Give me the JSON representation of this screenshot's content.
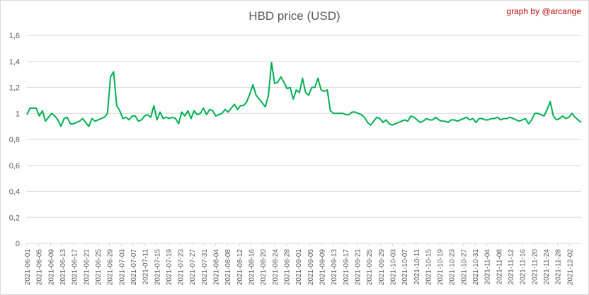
{
  "chart_data": {
    "type": "line",
    "title": "HBD price (USD)",
    "credit": "graph by @arcange",
    "xlabel": "",
    "ylabel": "",
    "ylim": [
      0,
      1.6
    ],
    "yticks": [
      "0",
      "0,2",
      "0,4",
      "0,6",
      "0,8",
      "1",
      "1,2",
      "1,4",
      "1,6"
    ],
    "grid": true,
    "legend": "none",
    "x_start": "2021-06-01",
    "x_end": "2021-12-06",
    "x_tick_labels": [
      "2021-06-01",
      "2021-06-05",
      "2021-06-09",
      "2021-06-13",
      "2021-06-17",
      "2021-06-21",
      "2021-06-25",
      "2021-06-29",
      "2021-07-03",
      "2021-07-07",
      "2021-07-11",
      "2021-07-15",
      "2021-07-19",
      "2021-07-23",
      "2021-07-27",
      "2021-07-31",
      "2021-08-04",
      "2021-08-08",
      "2021-08-12",
      "2021-08-16",
      "2021-08-20",
      "2021-08-24",
      "2021-08-28",
      "2021-09-01",
      "2021-09-05",
      "2021-09-09",
      "2021-09-13",
      "2021-09-17",
      "2021-09-21",
      "2021-09-25",
      "2021-09-29",
      "2021-10-03",
      "2021-10-07",
      "2021-10-11",
      "2021-10-15",
      "2021-10-19",
      "2021-10-23",
      "2021-10-27",
      "2021-10-31",
      "2021-11-04",
      "2021-11-08",
      "2021-11-12",
      "2021-11-16",
      "2021-11-20",
      "2021-11-24",
      "2021-11-28",
      "2021-12-02"
    ],
    "series": [
      {
        "color": "#00b050",
        "values": [
          0.99,
          1.04,
          1.04,
          1.04,
          0.98,
          1.02,
          0.94,
          0.97,
          1.0,
          0.98,
          0.95,
          0.9,
          0.96,
          0.97,
          0.92,
          0.92,
          0.93,
          0.94,
          0.96,
          0.93,
          0.9,
          0.96,
          0.94,
          0.95,
          0.96,
          0.97,
          1.0,
          1.28,
          1.32,
          1.06,
          1.02,
          0.96,
          0.97,
          0.95,
          0.98,
          0.98,
          0.94,
          0.95,
          0.98,
          0.99,
          0.97,
          1.06,
          0.95,
          1.01,
          0.96,
          0.97,
          0.96,
          0.97,
          0.96,
          0.92,
          1.01,
          0.98,
          1.02,
          0.96,
          1.02,
          0.99,
          1.0,
          1.04,
          0.99,
          1.03,
          1.02,
          0.98,
          0.99,
          1.0,
          1.03,
          1.01,
          1.04,
          1.07,
          1.03,
          1.06,
          1.06,
          1.09,
          1.15,
          1.22,
          1.14,
          1.11,
          1.08,
          1.05,
          1.14,
          1.39,
          1.23,
          1.24,
          1.28,
          1.24,
          1.19,
          1.2,
          1.11,
          1.18,
          1.16,
          1.27,
          1.16,
          1.14,
          1.2,
          1.2,
          1.27,
          1.18,
          1.17,
          1.18,
          1.02,
          1.0,
          1.0,
          1.0,
          1.0,
          0.99,
          0.99,
          1.01,
          1.01,
          1.0,
          0.99,
          0.97,
          0.93,
          0.91,
          0.94,
          0.97,
          0.96,
          0.93,
          0.95,
          0.92,
          0.91,
          0.92,
          0.93,
          0.94,
          0.95,
          0.94,
          0.98,
          0.97,
          0.95,
          0.93,
          0.94,
          0.96,
          0.95,
          0.95,
          0.97,
          0.95,
          0.94,
          0.94,
          0.93,
          0.95,
          0.95,
          0.94,
          0.95,
          0.96,
          0.97,
          0.95,
          0.96,
          0.93,
          0.96,
          0.96,
          0.95,
          0.95,
          0.96,
          0.96,
          0.97,
          0.95,
          0.96,
          0.96,
          0.97,
          0.96,
          0.95,
          0.94,
          0.95,
          0.96,
          0.92,
          0.95,
          1.0,
          1.0,
          0.99,
          0.98,
          1.03,
          1.09,
          0.98,
          0.95,
          0.96,
          0.98,
          0.96,
          0.97,
          1.0,
          0.97,
          0.95,
          0.93
        ]
      }
    ]
  }
}
